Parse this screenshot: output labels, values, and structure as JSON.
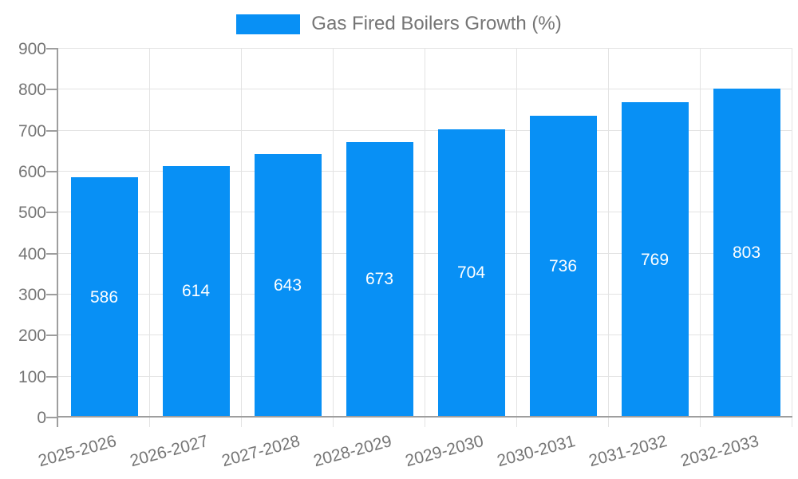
{
  "chart_data": {
    "type": "bar",
    "title": "Gas Fired Boilers Growth (%)",
    "legend": {
      "label": "Gas Fired Boilers Growth (%)",
      "position": "top"
    },
    "categories": [
      "2025-2026",
      "2026-2027",
      "2027-2028",
      "2028-2029",
      "2029-2030",
      "2030-2031",
      "2031-2032",
      "2032-2033"
    ],
    "values": [
      586,
      614,
      643,
      673,
      704,
      736,
      769,
      803
    ],
    "xlabel": "",
    "ylabel": "",
    "ylim": [
      0,
      900
    ],
    "ytick_step": 100,
    "yticks": [
      0,
      100,
      200,
      300,
      400,
      500,
      600,
      700,
      800,
      900
    ],
    "grid": true,
    "legend_position": "top-center",
    "bar_color": "#0890F5",
    "value_label_color": "#FFFFFF",
    "axis_color": "#9E9E9E",
    "grid_color": "#E3E3E3",
    "tick_label_color": "#757575",
    "background_color": "#FFFFFF"
  }
}
